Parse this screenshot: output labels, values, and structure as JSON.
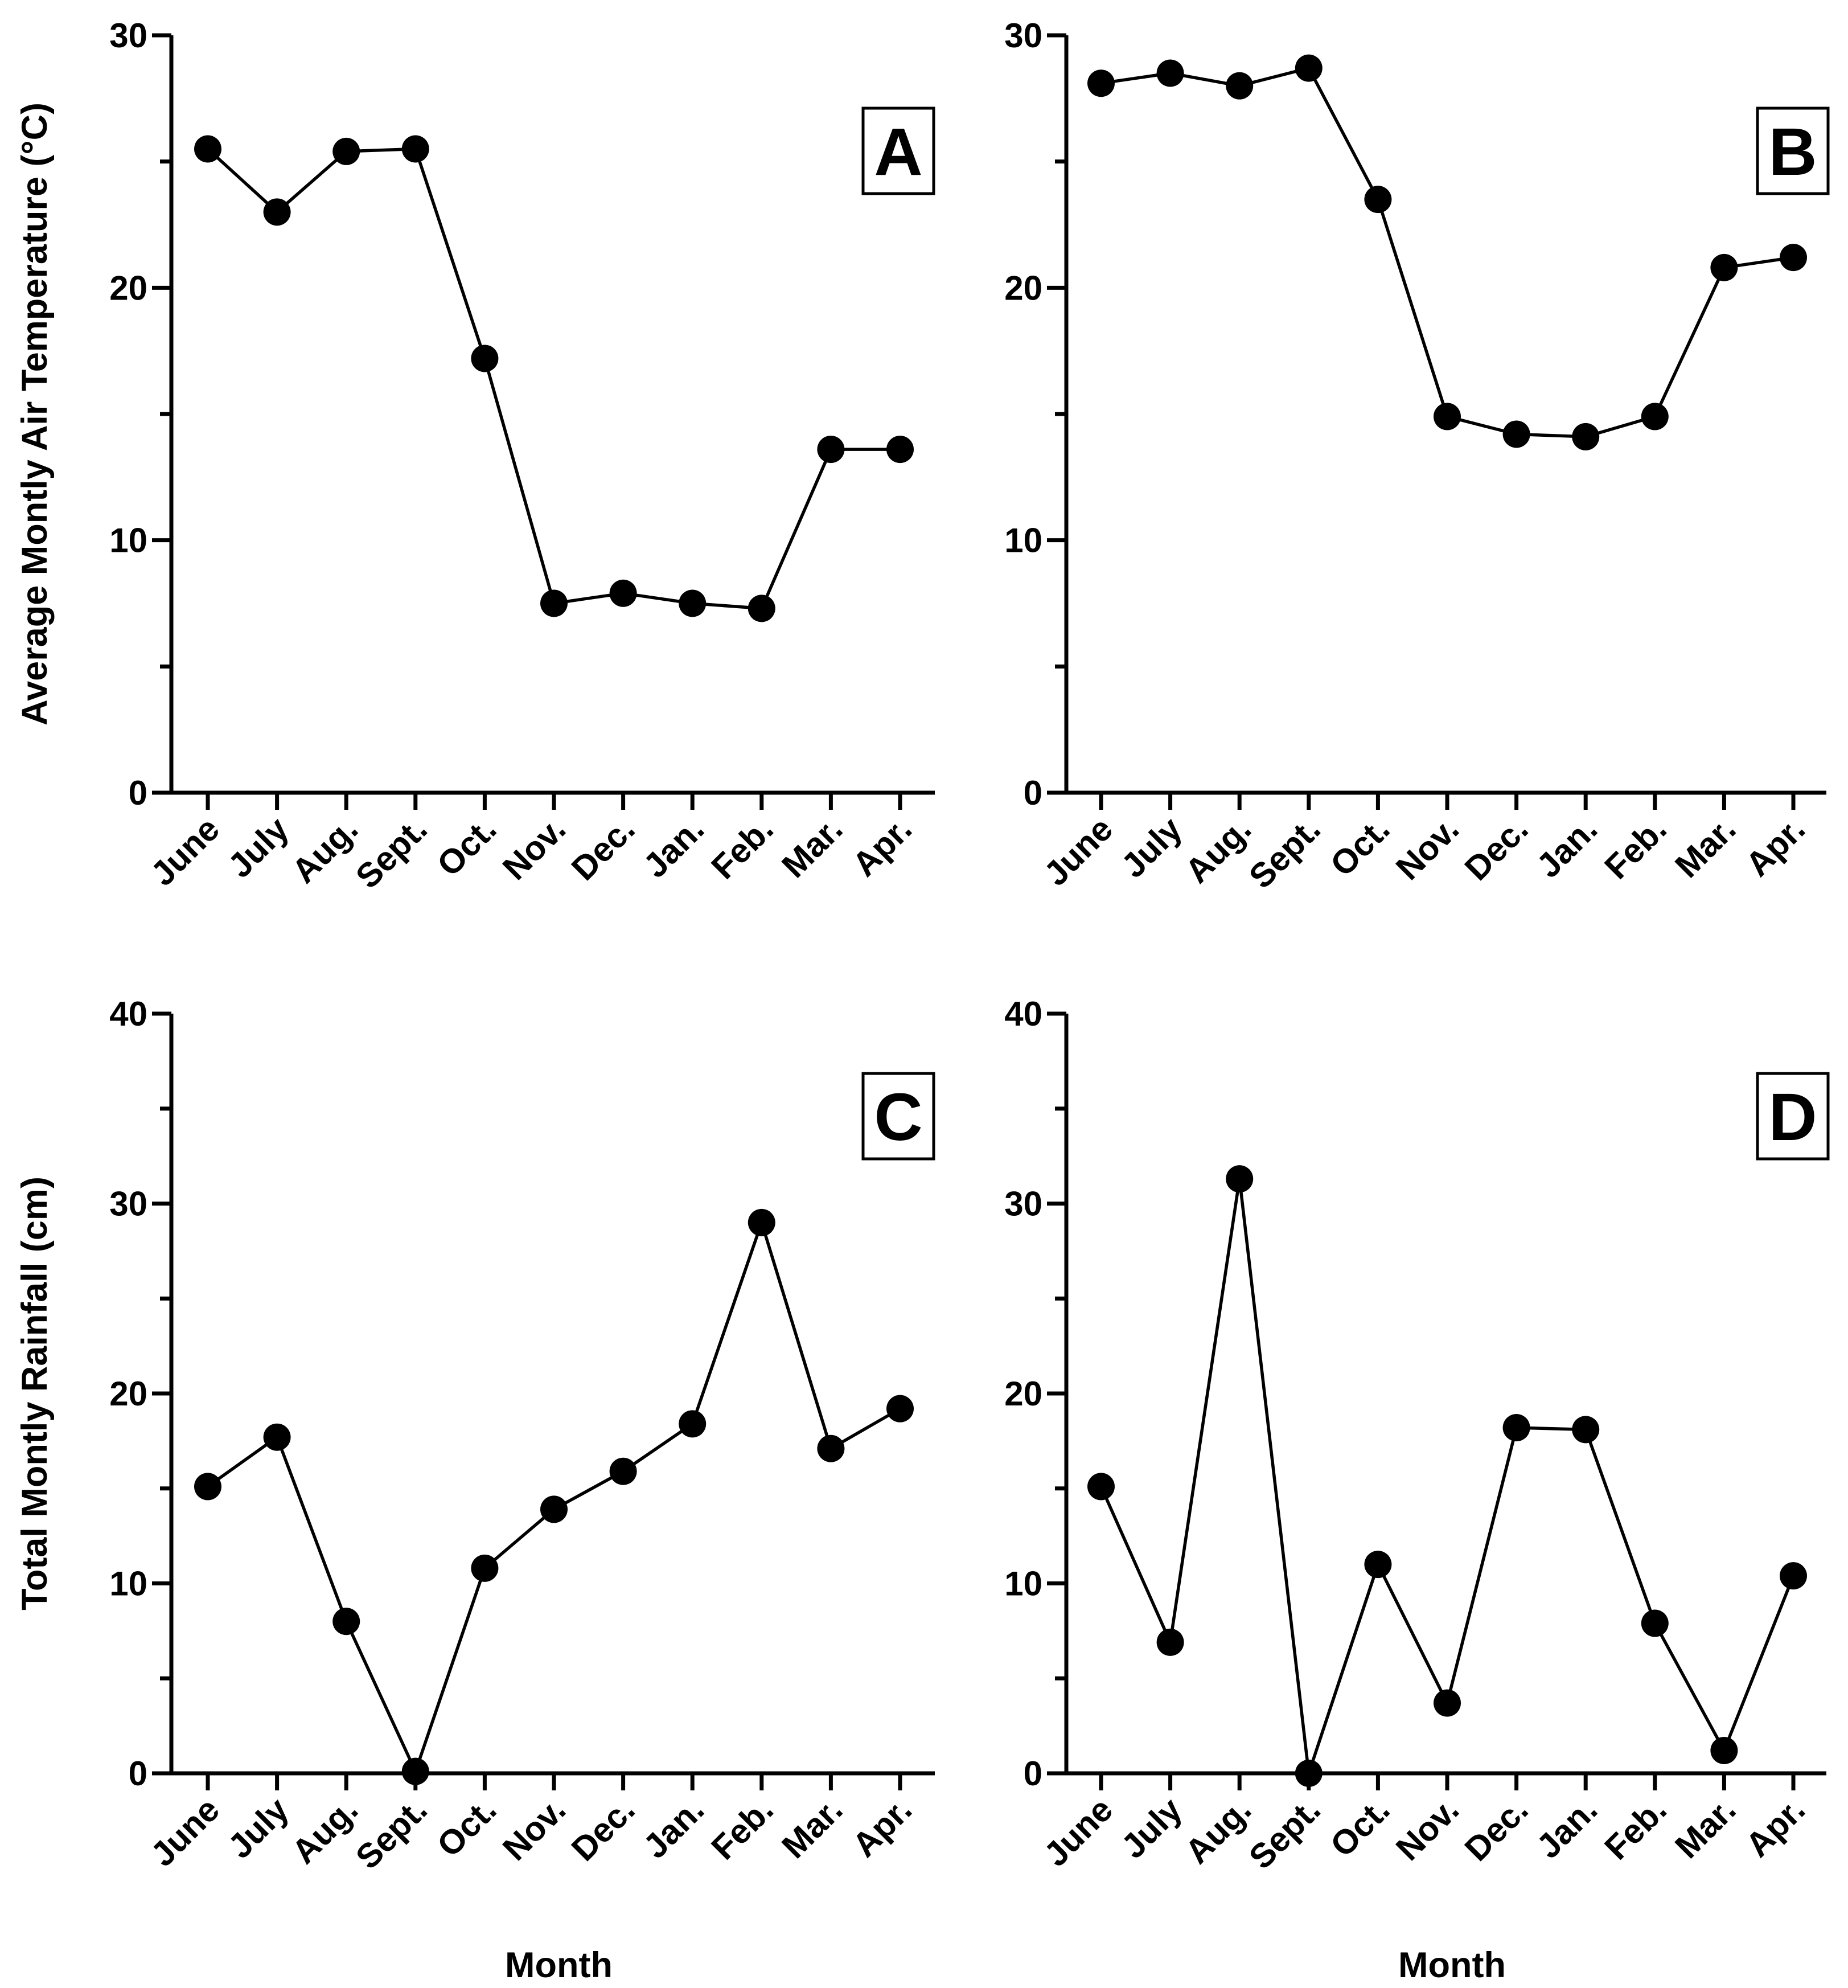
{
  "colors": {
    "line": "#000000",
    "marker": "#000000",
    "axis": "#000000",
    "background": "#ffffff"
  },
  "chart_data": [
    {
      "type": "line",
      "panel": "A",
      "title": "",
      "xlabel": "",
      "ylabel": "Average Montly Air Temperature (°C)",
      "categories": [
        "June",
        "July",
        "Aug.",
        "Sept.",
        "Oct.",
        "Nov.",
        "Dec.",
        "Jan.",
        "Feb.",
        "Mar.",
        "Apr."
      ],
      "values": [
        25.5,
        23.0,
        25.4,
        25.5,
        17.2,
        7.5,
        7.9,
        7.5,
        7.3,
        13.6,
        13.6
      ],
      "ylim": [
        0,
        30
      ],
      "yticks": [
        "0",
        "10",
        "20",
        "30"
      ],
      "yminor": [
        5,
        15,
        25
      ],
      "grid": false
    },
    {
      "type": "line",
      "panel": "B",
      "title": "",
      "xlabel": "",
      "ylabel": "",
      "categories": [
        "June",
        "July",
        "Aug.",
        "Sept.",
        "Oct.",
        "Nov.",
        "Dec.",
        "Jan.",
        "Feb.",
        "Mar.",
        "Apr."
      ],
      "values": [
        28.1,
        28.5,
        28.0,
        28.7,
        23.5,
        14.9,
        14.2,
        14.1,
        14.9,
        20.8,
        21.2
      ],
      "ylim": [
        0,
        30
      ],
      "yticks": [
        "0",
        "10",
        "20",
        "30"
      ],
      "yminor": [
        5,
        15,
        25
      ],
      "grid": false
    },
    {
      "type": "line",
      "panel": "C",
      "title": "",
      "xlabel": "Month",
      "ylabel": "Total Montly Rainfall (cm)",
      "categories": [
        "June",
        "July",
        "Aug.",
        "Sept.",
        "Oct.",
        "Nov.",
        "Dec.",
        "Jan.",
        "Feb.",
        "Mar.",
        "Apr."
      ],
      "values": [
        15.1,
        17.7,
        8.0,
        0.1,
        10.8,
        13.9,
        15.9,
        18.4,
        29.0,
        17.1,
        19.2
      ],
      "ylim": [
        0,
        40
      ],
      "yticks": [
        "0",
        "10",
        "20",
        "30",
        "40"
      ],
      "yminor": [
        5,
        15,
        25,
        35
      ],
      "grid": false
    },
    {
      "type": "line",
      "panel": "D",
      "title": "",
      "xlabel": "Month",
      "ylabel": "",
      "categories": [
        "June",
        "July",
        "Aug.",
        "Sept.",
        "Oct.",
        "Nov.",
        "Dec.",
        "Jan.",
        "Feb.",
        "Mar.",
        "Apr."
      ],
      "values": [
        15.1,
        6.9,
        31.3,
        0.0,
        11.0,
        3.7,
        18.2,
        18.1,
        7.9,
        1.2,
        10.4
      ],
      "ylim": [
        0,
        40
      ],
      "yticks": [
        "0",
        "10",
        "20",
        "30",
        "40"
      ],
      "yminor": [
        5,
        15,
        25,
        35
      ],
      "grid": false
    }
  ]
}
